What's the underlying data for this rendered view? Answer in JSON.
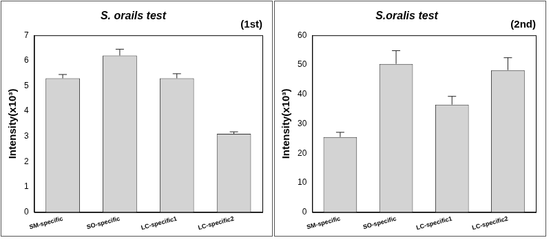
{
  "chart_data": [
    {
      "type": "bar",
      "title": "S. orails test",
      "annotation": "(1st)",
      "y_label": "Intensity(x10³)",
      "categories": [
        "SM-specific",
        "SO-specific",
        "LC-specific1",
        "LC-specific2"
      ],
      "values": [
        5.3,
        6.2,
        5.3,
        3.1
      ],
      "errors": [
        0.15,
        0.25,
        0.18,
        0.08
      ],
      "color": "#d3d3d3",
      "ylim": [
        0,
        7
      ],
      "yticks": [
        0,
        1,
        2,
        3,
        4,
        5,
        6,
        7
      ],
      "grid": false
    },
    {
      "type": "bar",
      "title": "S.oralis test",
      "annotation": "(2nd)",
      "y_label": "Intensity(x10³)",
      "categories": [
        "SM-specific",
        "SO-specific",
        "LC-specific1",
        "LC-specific2"
      ],
      "values": [
        25.5,
        50.3,
        36.5,
        48.2
      ],
      "errors": [
        1.6,
        4.5,
        2.8,
        4.2
      ],
      "color": "#d3d3d3",
      "ylim": [
        0,
        60
      ],
      "yticks": [
        0,
        10,
        20,
        30,
        40,
        50,
        60
      ],
      "grid": false
    }
  ]
}
